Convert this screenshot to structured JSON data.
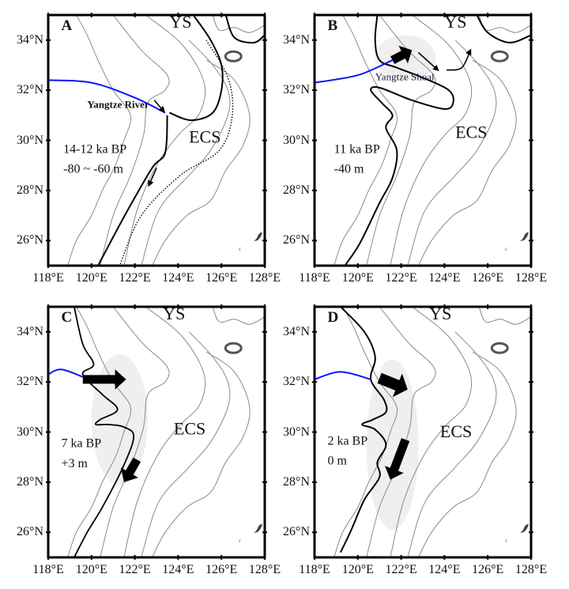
{
  "axes": {
    "lon_labels": [
      "118°E",
      "120°E",
      "122°E",
      "124°E",
      "126°E",
      "128°E"
    ],
    "lat_labels": [
      "26°N",
      "28°N",
      "30°N",
      "32°N",
      "34°N"
    ]
  },
  "panels": [
    {
      "label": "A",
      "ys": "YS",
      "ecs": "ECS",
      "age": "14-12 ka BP",
      "sea_level": "-80 ~ -60 m",
      "annotation": "Yangtze River"
    },
    {
      "label": "B",
      "ys": "YS",
      "ecs": "ECS",
      "age": "11 ka BP",
      "sea_level": "-40 m",
      "annotation": "Yangtze Shoal"
    },
    {
      "label": "C",
      "ys": "YS",
      "ecs": "ECS",
      "age": "7 ka BP",
      "sea_level": "+3 m"
    },
    {
      "label": "D",
      "ys": "YS",
      "ecs": "ECS",
      "age": "2 ka BP",
      "sea_level": "0 m"
    }
  ],
  "colors": {
    "river": "#0a14ff",
    "contour": "#8a8a8a",
    "shoreline": "#000000",
    "shoal": "#efefef"
  }
}
